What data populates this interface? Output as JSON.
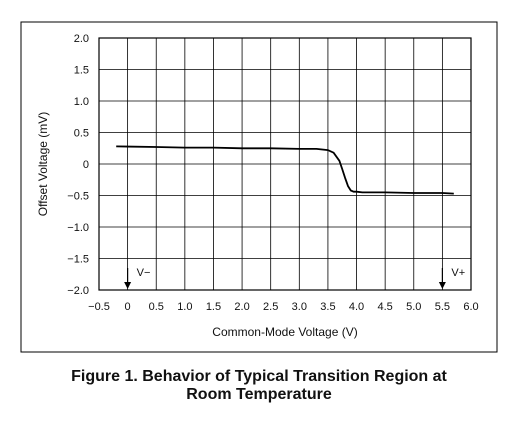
{
  "chart_data": {
    "type": "line",
    "title": "",
    "xlabel": "Common-Mode Voltage (V)",
    "ylabel": "Offset Voltage (mV)",
    "xlim": [
      -0.5,
      6.0
    ],
    "ylim": [
      -2.0,
      2.0
    ],
    "grid": true,
    "x_ticks": [
      -0.5,
      0,
      0.5,
      1.0,
      1.5,
      2.0,
      2.5,
      3.0,
      3.5,
      4.0,
      4.5,
      5.0,
      5.5,
      6.0
    ],
    "x_tick_labels": [
      "−0.5",
      "0",
      "0.5",
      "1.0",
      "1.5",
      "2.0",
      "2.5",
      "3.0",
      "3.5",
      "4.0",
      "4.5",
      "5.0",
      "5.5",
      "6.0"
    ],
    "y_ticks": [
      2.0,
      1.5,
      1.0,
      0.5,
      0,
      -0.5,
      -1.0,
      -1.5,
      -2.0
    ],
    "y_tick_labels": [
      "2.0",
      "1.5",
      "1.0",
      "0.5",
      "0",
      "−0.5",
      "−1.0",
      "−1.5",
      "−2.0"
    ],
    "series": [
      {
        "x": [
          -0.2,
          0.5,
          1.0,
          1.5,
          2.0,
          2.5,
          3.0,
          3.3,
          3.5,
          3.6,
          3.7,
          3.75,
          3.8,
          3.85,
          3.9,
          3.95,
          4.0,
          4.1,
          4.5,
          5.0,
          5.5,
          5.7
        ],
        "y": [
          0.28,
          0.27,
          0.26,
          0.26,
          0.25,
          0.25,
          0.24,
          0.24,
          0.22,
          0.18,
          0.05,
          -0.08,
          -0.22,
          -0.35,
          -0.42,
          -0.44,
          -0.44,
          -0.45,
          -0.45,
          -0.46,
          -0.46,
          -0.47
        ]
      }
    ],
    "markers": [
      {
        "label": "V−",
        "x": 0
      },
      {
        "label": "V+",
        "x": 5.5
      }
    ],
    "colors": {
      "line": "#000000",
      "grid": "#000000"
    }
  },
  "caption": {
    "line1": "Figure 1. Behavior of Typical Transition Region at",
    "line2": "Room Temperature"
  }
}
